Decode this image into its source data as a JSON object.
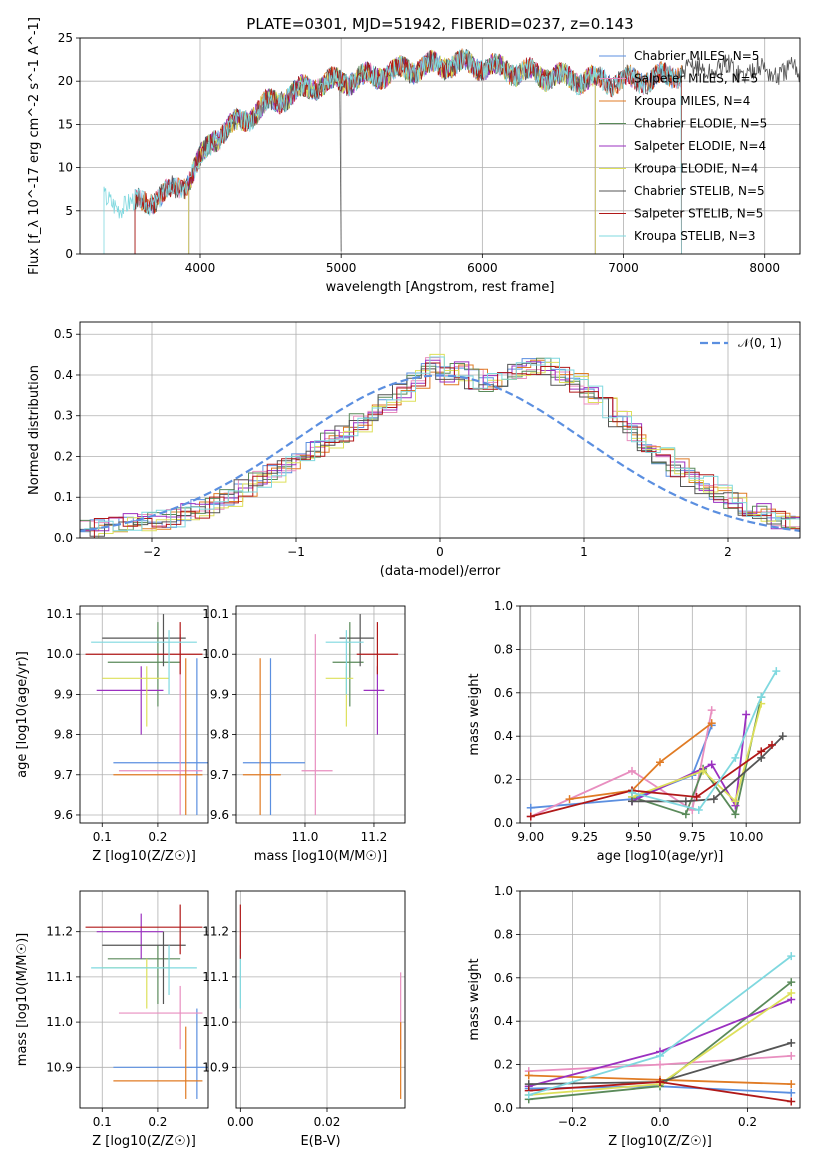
{
  "chart_data": [
    {
      "type": "line",
      "title": "PLATE=0301, MJD=51942, FIBERID=0237, z=0.143",
      "xlabel": "wavelength [Angstrom, rest frame]",
      "ylabel": "Flux [f_λ 10^-17 erg cm^-2 s^-1 A^-1]",
      "xlim": [
        3150,
        8250
      ],
      "ylim": [
        0,
        25
      ],
      "xticks": [
        "4000",
        "5000",
        "6000",
        "7000",
        "8000"
      ],
      "yticks": [
        "0",
        "5",
        "10",
        "15",
        "20",
        "25"
      ],
      "legend_position": "top-right",
      "series": [
        {
          "name": "Chabrier MILES, N_SSP=5",
          "color": "#5b8fe0",
          "range": [
            3540,
            7410
          ]
        },
        {
          "name": "Salpeter MILES, N_SSP=5",
          "color": "#e88ebf",
          "range": [
            3540,
            7410
          ]
        },
        {
          "name": "Kroupa MILES, N_SSP=4",
          "color": "#e07b24",
          "range": [
            3540,
            7410
          ]
        },
        {
          "name": "Chabrier ELODIE, N_SSP=5",
          "color": "#5a8a5a",
          "range": [
            3920,
            6800
          ]
        },
        {
          "name": "Salpeter ELODIE, N_SSP=4",
          "color": "#9b30c0",
          "range": [
            3920,
            6800
          ]
        },
        {
          "name": "Kroupa ELODIE, N_SSP=4",
          "color": "#dde05a",
          "range": [
            3920,
            6800
          ]
        },
        {
          "name": "Chabrier STELIB, N_SSP=5",
          "color": "#555555",
          "range": [
            3540,
            8250
          ]
        },
        {
          "name": "Salpeter STELIB, N_SSP=5",
          "color": "#b01818",
          "range": [
            3540,
            7410
          ]
        },
        {
          "name": "Kroupa STELIB, N_SSP=3",
          "color": "#7fd8df",
          "range": [
            3320,
            7410
          ]
        }
      ],
      "spectrum_anchors": {
        "x": [
          3320,
          3540,
          3700,
          3900,
          4000,
          4100,
          4300,
          4500,
          4800,
          5000,
          5200,
          5500,
          5800,
          6000,
          6300,
          6600,
          7000,
          7300,
          7400,
          7600,
          8250
        ],
        "y": [
          6.2,
          5.8,
          6.5,
          8.2,
          10.8,
          13.5,
          15.5,
          17.5,
          19.5,
          20.0,
          20.5,
          21.5,
          22.0,
          21.8,
          21.0,
          20.3,
          20.0,
          20.5,
          21.0,
          21.5,
          21.0
        ]
      }
    },
    {
      "type": "step",
      "xlabel": "(data-model)/error",
      "ylabel": "Normed distribution",
      "xlim": [
        -2.5,
        2.5
      ],
      "ylim": [
        0,
        0.53
      ],
      "xticks": [
        "−2",
        "−1",
        "0",
        "1",
        "2"
      ],
      "yticks": [
        "0.0",
        "0.1",
        "0.2",
        "0.3",
        "0.4",
        "0.5"
      ],
      "legend": "𝒩(0, 1)",
      "legend_position": "top-right",
      "bin_width": 0.1,
      "base_hist": [
        0.02,
        0.025,
        0.03,
        0.035,
        0.04,
        0.045,
        0.05,
        0.06,
        0.07,
        0.085,
        0.1,
        0.12,
        0.14,
        0.16,
        0.18,
        0.2,
        0.22,
        0.24,
        0.26,
        0.28,
        0.31,
        0.33,
        0.36,
        0.39,
        0.43,
        0.4,
        0.41,
        0.39,
        0.38,
        0.39,
        0.41,
        0.42,
        0.42,
        0.4,
        0.38,
        0.35,
        0.32,
        0.29,
        0.26,
        0.23,
        0.2,
        0.17,
        0.15,
        0.13,
        0.11,
        0.09,
        0.075,
        0.06,
        0.045,
        0.035
      ],
      "series_colors": [
        "#5b8fe0",
        "#e88ebf",
        "#e07b24",
        "#5a8a5a",
        "#9b30c0",
        "#dde05a",
        "#555555",
        "#b01818",
        "#7fd8df"
      ],
      "gaussian_color": "#5b8fe0"
    },
    {
      "type": "scatter",
      "xlabel": "Z [log10(Z/Z☉)]",
      "ylabel": "age  [log10(age/yr)]",
      "xlim": [
        0.06,
        0.29
      ],
      "ylim": [
        9.58,
        10.12
      ],
      "xticks": [
        "0.1",
        "0.2"
      ],
      "yticks": [
        "9.6",
        "9.7",
        "9.8",
        "9.9",
        "10.0",
        "10.1"
      ],
      "points": [
        {
          "x": 0.27,
          "y": 9.73,
          "xerr": [
            0.12,
            0.29
          ],
          "yerr": [
            9.6,
            9.99
          ],
          "color": "#5b8fe0"
        },
        {
          "x": 0.24,
          "y": 9.71,
          "xerr": [
            0.13,
            0.28
          ],
          "yerr": [
            9.6,
            10.05
          ],
          "color": "#e88ebf"
        },
        {
          "x": 0.25,
          "y": 9.7,
          "xerr": [
            0.12,
            0.28
          ],
          "yerr": [
            9.6,
            9.99
          ],
          "color": "#e07b24"
        },
        {
          "x": 0.2,
          "y": 9.98,
          "xerr": [
            0.11,
            0.24
          ],
          "yerr": [
            9.87,
            10.08
          ],
          "color": "#5a8a5a"
        },
        {
          "x": 0.17,
          "y": 9.91,
          "xerr": [
            0.09,
            0.21
          ],
          "yerr": [
            9.8,
            9.97
          ],
          "color": "#9b30c0"
        },
        {
          "x": 0.18,
          "y": 9.94,
          "xerr": [
            0.1,
            0.22
          ],
          "yerr": [
            9.82,
            9.97
          ],
          "color": "#dde05a"
        },
        {
          "x": 0.21,
          "y": 10.04,
          "xerr": [
            0.1,
            0.25
          ],
          "yerr": [
            9.97,
            10.1
          ],
          "color": "#555555"
        },
        {
          "x": 0.24,
          "y": 10.0,
          "xerr": [
            0.07,
            0.28
          ],
          "yerr": [
            9.95,
            10.08
          ],
          "color": "#b01818"
        },
        {
          "x": 0.22,
          "y": 10.03,
          "xerr": [
            0.08,
            0.27
          ],
          "yerr": [
            9.9,
            10.06
          ],
          "color": "#7fd8df"
        }
      ]
    },
    {
      "type": "scatter",
      "xlabel": "mass [log10(M/M☉)]",
      "ylabel": "",
      "xlim": [
        10.8,
        11.29
      ],
      "ylim": [
        9.58,
        10.12
      ],
      "xticks": [
        "11.0",
        "11.2"
      ],
      "yticks": [
        "9.6",
        "9.7",
        "9.8",
        "9.9",
        "10.0",
        "10.1"
      ],
      "points": [
        {
          "x": 10.9,
          "y": 9.73,
          "xerr": [
            10.82,
            11.0
          ],
          "yerr": [
            9.6,
            9.99
          ],
          "color": "#5b8fe0"
        },
        {
          "x": 11.03,
          "y": 9.71,
          "xerr": [
            10.99,
            11.08
          ],
          "yerr": [
            9.6,
            10.05
          ],
          "color": "#e88ebf"
        },
        {
          "x": 10.87,
          "y": 9.7,
          "xerr": [
            10.82,
            10.93
          ],
          "yerr": [
            9.6,
            9.99
          ],
          "color": "#e07b24"
        },
        {
          "x": 11.13,
          "y": 9.98,
          "xerr": [
            11.08,
            11.17
          ],
          "yerr": [
            9.87,
            10.08
          ],
          "color": "#5a8a5a"
        },
        {
          "x": 11.21,
          "y": 9.91,
          "xerr": [
            11.17,
            11.23
          ],
          "yerr": [
            9.8,
            9.97
          ],
          "color": "#9b30c0"
        },
        {
          "x": 11.12,
          "y": 9.94,
          "xerr": [
            11.06,
            11.14
          ],
          "yerr": [
            9.82,
            9.97
          ],
          "color": "#dde05a"
        },
        {
          "x": 11.16,
          "y": 10.04,
          "xerr": [
            11.1,
            11.2
          ],
          "yerr": [
            9.97,
            10.1
          ],
          "color": "#555555"
        },
        {
          "x": 11.21,
          "y": 10.0,
          "xerr": [
            11.15,
            11.27
          ],
          "yerr": [
            9.95,
            10.08
          ],
          "color": "#b01818"
        },
        {
          "x": 11.12,
          "y": 10.03,
          "xerr": [
            11.06,
            11.17
          ],
          "yerr": [
            9.9,
            10.06
          ],
          "color": "#7fd8df"
        }
      ]
    },
    {
      "type": "line",
      "xlabel": "age  [log10(age/yr)]",
      "ylabel": "mass weight",
      "xlim": [
        8.95,
        10.25
      ],
      "ylim": [
        0,
        1
      ],
      "xticks": [
        "9.00",
        "9.25",
        "9.50",
        "9.75",
        "10.00"
      ],
      "yticks": [
        "0.0",
        "0.2",
        "0.4",
        "0.6",
        "0.8",
        "1.0"
      ],
      "series": [
        {
          "color": "#5b8fe0",
          "x": [
            9.0,
            9.47,
            9.75,
            9.84
          ],
          "y": [
            0.07,
            0.11,
            0.22,
            0.45
          ]
        },
        {
          "color": "#e88ebf",
          "x": [
            9.0,
            9.47,
            9.75,
            9.84
          ],
          "y": [
            0.03,
            0.24,
            0.06,
            0.52
          ]
        },
        {
          "color": "#e07b24",
          "x": [
            9.18,
            9.47,
            9.6,
            9.84
          ],
          "y": [
            0.11,
            0.15,
            0.28,
            0.46
          ]
        },
        {
          "color": "#5a8a5a",
          "x": [
            9.47,
            9.72,
            9.8,
            9.95,
            10.07
          ],
          "y": [
            0.12,
            0.04,
            0.25,
            0.04,
            0.58
          ]
        },
        {
          "color": "#9b30c0",
          "x": [
            9.47,
            9.84,
            9.95,
            10.0
          ],
          "y": [
            0.1,
            0.27,
            0.08,
            0.5
          ]
        },
        {
          "color": "#dde05a",
          "x": [
            9.47,
            9.8,
            9.95,
            10.07
          ],
          "y": [
            0.12,
            0.24,
            0.1,
            0.55
          ]
        },
        {
          "color": "#555555",
          "x": [
            9.47,
            9.72,
            9.85,
            10.07,
            10.17
          ],
          "y": [
            0.1,
            0.1,
            0.11,
            0.3,
            0.4
          ]
        },
        {
          "color": "#b01818",
          "x": [
            9.0,
            9.47,
            9.77,
            10.07,
            10.12
          ],
          "y": [
            0.03,
            0.15,
            0.12,
            0.33,
            0.36
          ]
        },
        {
          "color": "#7fd8df",
          "x": [
            9.47,
            9.78,
            9.95,
            10.07,
            10.14
          ],
          "y": [
            0.14,
            0.06,
            0.3,
            0.58,
            0.7
          ]
        }
      ]
    },
    {
      "type": "scatter",
      "xlabel": "Z [log10(Z/Z☉)]",
      "ylabel": "mass [log10(M/M☉)]",
      "xlim": [
        0.06,
        0.29
      ],
      "ylim": [
        10.81,
        11.29
      ],
      "xticks": [
        "0.1",
        "0.2"
      ],
      "yticks": [
        "10.9",
        "11.0",
        "11.1",
        "11.2"
      ],
      "points": [
        {
          "x": 0.27,
          "y": 10.9,
          "xerr": [
            0.12,
            0.29
          ],
          "yerr": [
            10.83,
            11.03
          ],
          "color": "#5b8fe0"
        },
        {
          "x": 0.24,
          "y": 11.02,
          "xerr": [
            0.13,
            0.28
          ],
          "yerr": [
            10.94,
            11.08
          ],
          "color": "#e88ebf"
        },
        {
          "x": 0.25,
          "y": 10.87,
          "xerr": [
            0.12,
            0.28
          ],
          "yerr": [
            10.83,
            10.99
          ],
          "color": "#e07b24"
        },
        {
          "x": 0.2,
          "y": 11.14,
          "xerr": [
            0.11,
            0.24
          ],
          "yerr": [
            11.04,
            11.17
          ],
          "color": "#5a8a5a"
        },
        {
          "x": 0.17,
          "y": 11.2,
          "xerr": [
            0.09,
            0.21
          ],
          "yerr": [
            11.14,
            11.24
          ],
          "color": "#9b30c0"
        },
        {
          "x": 0.18,
          "y": 11.12,
          "xerr": [
            0.1,
            0.22
          ],
          "yerr": [
            11.03,
            11.14
          ],
          "color": "#dde05a"
        },
        {
          "x": 0.21,
          "y": 11.17,
          "xerr": [
            0.1,
            0.25
          ],
          "yerr": [
            11.04,
            11.2
          ],
          "color": "#555555"
        },
        {
          "x": 0.24,
          "y": 11.21,
          "xerr": [
            0.07,
            0.28
          ],
          "yerr": [
            11.15,
            11.26
          ],
          "color": "#b01818"
        },
        {
          "x": 0.22,
          "y": 11.12,
          "xerr": [
            0.08,
            0.27
          ],
          "yerr": [
            11.06,
            11.17
          ],
          "color": "#7fd8df"
        }
      ]
    },
    {
      "type": "scatter",
      "xlabel": "E(B-V)",
      "ylabel": "",
      "xlim": [
        -0.001,
        0.038
      ],
      "ylim": [
        10.81,
        11.29
      ],
      "xticks": [
        "0.00",
        "0.02"
      ],
      "yticks": [
        "10.9",
        "11.0",
        "11.1",
        "11.2"
      ],
      "points": [
        {
          "x": 0.0,
          "y": 11.12,
          "yerr": [
            11.03,
            11.17
          ],
          "color": "#7fd8df"
        },
        {
          "x": 0.0,
          "y": 11.2,
          "yerr": [
            11.14,
            11.26
          ],
          "color": "#b01818"
        },
        {
          "x": 0.037,
          "y": 11.02,
          "yerr": [
            10.94,
            11.11
          ],
          "color": "#e88ebf"
        },
        {
          "x": 0.037,
          "y": 10.9,
          "yerr": [
            10.83,
            11.0
          ],
          "color": "#e07b24"
        }
      ]
    },
    {
      "type": "line",
      "xlabel": "Z [log10(Z/Z☉)]",
      "ylabel": "mass weight",
      "xlim": [
        -0.32,
        0.32
      ],
      "ylim": [
        0,
        1
      ],
      "xticks": [
        "−0.2",
        "0.0",
        "0.2"
      ],
      "yticks": [
        "0.0",
        "0.2",
        "0.4",
        "0.6",
        "0.8",
        "1.0"
      ],
      "series": [
        {
          "color": "#5b8fe0",
          "x": [
            -0.3,
            0.0,
            0.3
          ],
          "y": [
            0.09,
            0.1,
            0.07
          ]
        },
        {
          "color": "#e88ebf",
          "x": [
            -0.3,
            0.0,
            0.3
          ],
          "y": [
            0.17,
            0.2,
            0.24
          ]
        },
        {
          "color": "#e07b24",
          "x": [
            -0.3,
            0.0,
            0.3
          ],
          "y": [
            0.15,
            0.13,
            0.11
          ]
        },
        {
          "color": "#5a8a5a",
          "x": [
            -0.3,
            0.0,
            0.3
          ],
          "y": [
            0.04,
            0.1,
            0.58
          ]
        },
        {
          "color": "#9b30c0",
          "x": [
            -0.3,
            0.0,
            0.3
          ],
          "y": [
            0.1,
            0.26,
            0.5
          ]
        },
        {
          "color": "#dde05a",
          "x": [
            -0.3,
            0.0,
            0.3
          ],
          "y": [
            0.06,
            0.11,
            0.53
          ]
        },
        {
          "color": "#555555",
          "x": [
            -0.3,
            0.0,
            0.3
          ],
          "y": [
            0.11,
            0.12,
            0.3
          ]
        },
        {
          "color": "#b01818",
          "x": [
            -0.3,
            0.0,
            0.3
          ],
          "y": [
            0.08,
            0.12,
            0.03
          ]
        },
        {
          "color": "#7fd8df",
          "x": [
            -0.3,
            0.0,
            0.3
          ],
          "y": [
            0.06,
            0.24,
            0.7
          ]
        }
      ]
    }
  ]
}
